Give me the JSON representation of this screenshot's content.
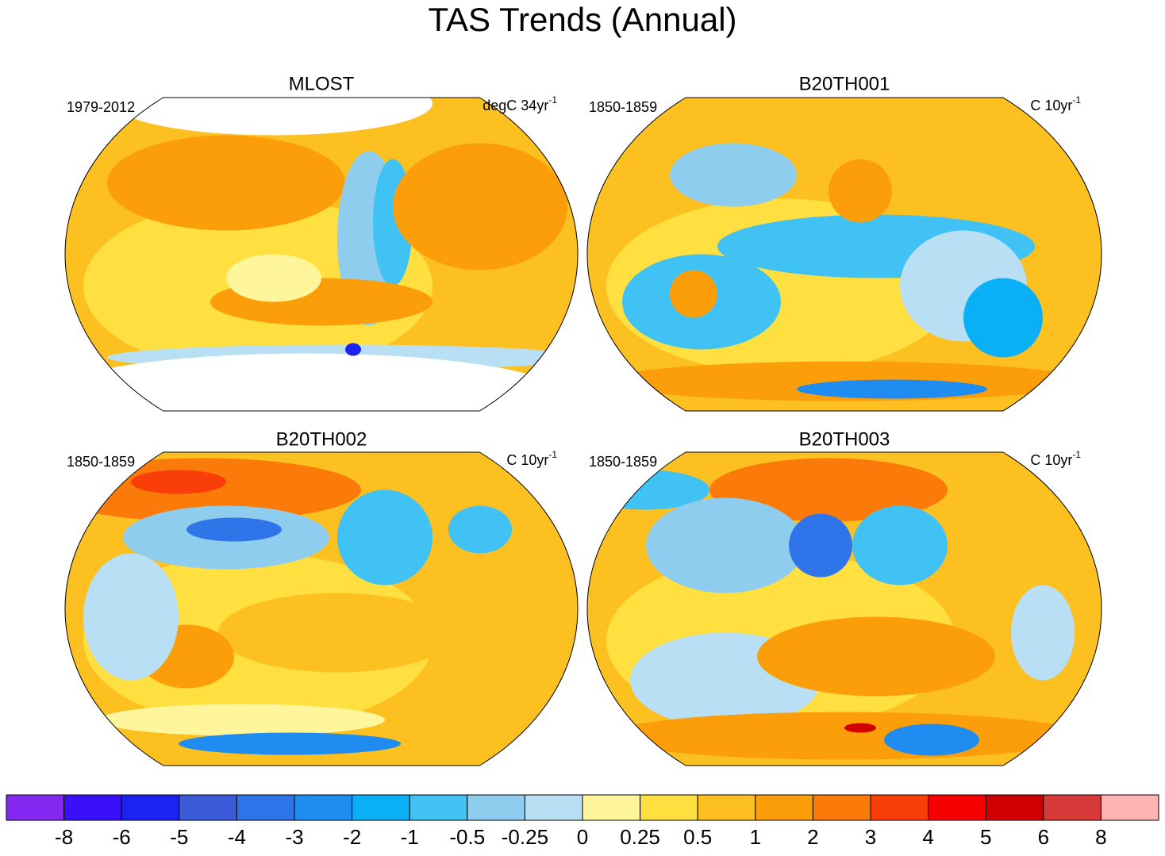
{
  "title": "TAS Trends (Annual)",
  "panels": [
    {
      "title": "MLOST",
      "left_label": "1979-2012",
      "right_label": "degC 34yr",
      "right_superscript": "-1"
    },
    {
      "title": "B20TH001",
      "left_label": "1850-1859",
      "right_label": "C 10yr",
      "right_superscript": "-1"
    },
    {
      "title": "B20TH002",
      "left_label": "1850-1859",
      "right_label": "C 10yr",
      "right_superscript": "-1"
    },
    {
      "title": "B20TH003",
      "left_label": "1850-1859",
      "right_label": "C 10yr",
      "right_superscript": "-1"
    }
  ],
  "colorbar": {
    "colors": [
      "#8228f0",
      "#3a10fa",
      "#1c22f0",
      "#3b5ad8",
      "#2f74e8",
      "#1e8cf0",
      "#0ab0f5",
      "#40c2f5",
      "#8ecdee",
      "#b8dff4",
      "#fff59a",
      "#ffe040",
      "#fcc020",
      "#fc9e0a",
      "#fa7a0a",
      "#fa3e0a",
      "#f80000",
      "#d00000",
      "#d83a3a",
      "#ffb4b4"
    ],
    "levels": [
      -8,
      -6,
      -5,
      -4,
      -3,
      -2,
      -1,
      -0.5,
      -0.25,
      0,
      0.25,
      0.5,
      1,
      2,
      3,
      4,
      5,
      6,
      8
    ]
  }
}
